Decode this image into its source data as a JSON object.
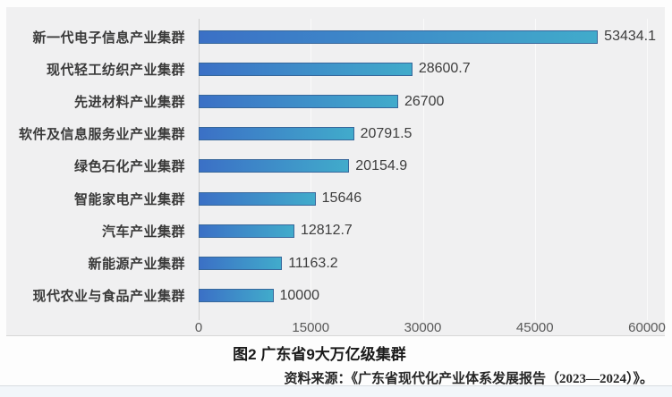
{
  "figure": {
    "title": "图2 广东省9大万亿级集群",
    "source": "资料来源：《广东省现代化产业体系发展报告（2023—2024）》。"
  },
  "chart_data": {
    "type": "bar",
    "orientation": "horizontal",
    "title": "图2 广东省9大万亿级集群",
    "xlabel": "",
    "ylabel": "",
    "categories": [
      "新一代电子信息产业集群",
      "现代轻工纺织产业集群",
      "先进材料产业集群",
      "软件及信息服务业产业集群",
      "绿色石化产业集群",
      "智能家电产业集群",
      "汽车产业集群",
      "新能源产业集群",
      "现代农业与食品产业集群"
    ],
    "values": [
      53434.1,
      28600.7,
      26700,
      20791.5,
      20154.9,
      15646,
      12812.7,
      11163.2,
      10000
    ],
    "value_labels": [
      "53434.1",
      "28600.7",
      "26700",
      "20791.5",
      "20154.9",
      "15646",
      "12812.7",
      "11163.2",
      "10000"
    ],
    "xlim": [
      0,
      60000
    ],
    "x_ticks": [
      0,
      15000,
      30000,
      45000,
      60000
    ],
    "x_tick_labels": [
      "0",
      "15000",
      "30000",
      "45000",
      "60000"
    ],
    "grid": "vertical-gridlines-on",
    "legend": "none",
    "colors": {
      "bar_gradient_start": "#3b70c6",
      "bar_gradient_end": "#41abcb",
      "bar_border": "#37679b",
      "panel_bg": "#f0f0f1",
      "gridline": "#fafafa",
      "axis_line": "#cfcfcf",
      "category_label": "#3a3a3a",
      "value_label": "#3d3d3d",
      "tick_label": "#595959"
    }
  }
}
